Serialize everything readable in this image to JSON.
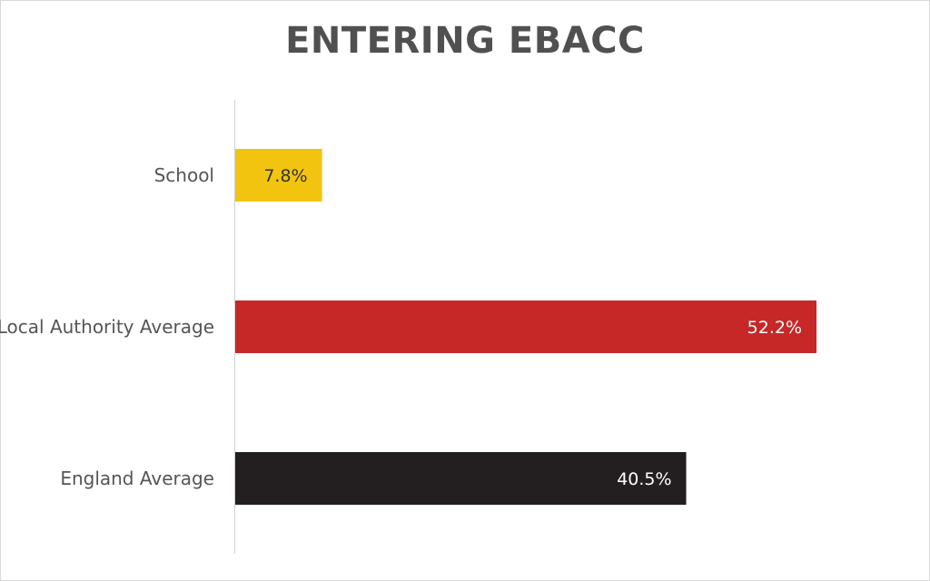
{
  "chart_data": {
    "type": "bar",
    "orientation": "horizontal",
    "title": "ENTERING EBACC",
    "categories": [
      "School",
      "Local Authority Average",
      "England Average"
    ],
    "values": [
      7.8,
      52.2,
      40.5
    ],
    "data_labels": [
      "7.8%",
      "52.2%",
      "40.5%"
    ],
    "colors": [
      "#f2c40f",
      "#c62828",
      "#231f20"
    ],
    "label_colors": [
      "#333333",
      "#ffffff",
      "#ffffff"
    ],
    "xlim": [
      0,
      52.2
    ],
    "grid": false,
    "legend": "none",
    "axis_color": "#d0d0d0"
  }
}
